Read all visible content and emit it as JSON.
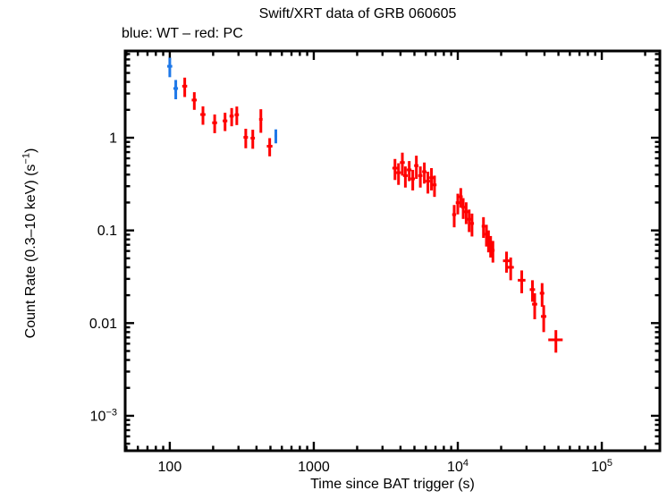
{
  "header": {
    "title": "Swift/XRT data of GRB 060605",
    "subtitle": "blue: WT – red: PC"
  },
  "axis_titles": {
    "x": "Time since BAT trigger (s)",
    "y_prefix": "Count Rate (0.3–10 keV) (s",
    "y_sup": "−1",
    "y_suffix": ")"
  },
  "chart_data": {
    "type": "scatter",
    "title": "Swift/XRT data of GRB 060605",
    "legend_text": "blue: WT – red: PC",
    "xlabel": "Time since BAT trigger (s)",
    "ylabel": "Count Rate (0.3–10 keV) (s^-1)",
    "xscale": "log",
    "yscale": "log",
    "grid": false,
    "xlim": [
      49,
      253000
    ],
    "ylim": [
      0.00042,
      8.63
    ],
    "x_major_ticks": [
      {
        "v": 100,
        "base": "100",
        "sup": ""
      },
      {
        "v": 1000,
        "base": "1000",
        "sup": ""
      },
      {
        "v": 10000,
        "base": "10",
        "sup": "4"
      },
      {
        "v": 100000,
        "base": "10",
        "sup": "5"
      }
    ],
    "y_major_ticks": [
      {
        "v": 1,
        "base": "1",
        "sup": ""
      },
      {
        "v": 0.1,
        "base": "0.1",
        "sup": ""
      },
      {
        "v": 0.01,
        "base": "0.01",
        "sup": ""
      },
      {
        "v": 0.001,
        "base": "10",
        "sup": "−3"
      }
    ],
    "series": [
      {
        "name": "WT",
        "color": "#1E78E8",
        "points": [
          [
            100,
            4,
            5.9,
            1.4
          ],
          [
            110,
            4,
            3.4,
            0.8
          ],
          [
            545,
            12,
            1.05,
            0.18
          ]
        ]
      },
      {
        "name": "PC",
        "color": "#FF0000",
        "points": [
          [
            127,
            5,
            3.6,
            0.85
          ],
          [
            148,
            6,
            2.55,
            0.55
          ],
          [
            170,
            7,
            1.78,
            0.4
          ],
          [
            205,
            8,
            1.45,
            0.33
          ],
          [
            242,
            9,
            1.52,
            0.34
          ],
          [
            269,
            9,
            1.71,
            0.38
          ],
          [
            292,
            10,
            1.77,
            0.4
          ],
          [
            337,
            12,
            1.01,
            0.24
          ],
          [
            377,
            13,
            0.99,
            0.23
          ],
          [
            429,
            12,
            1.58,
            0.45
          ],
          [
            494,
            22,
            0.81,
            0.18
          ],
          [
            3663,
            150,
            0.47,
            0.12
          ],
          [
            3876,
            150,
            0.42,
            0.11
          ],
          [
            4122,
            160,
            0.54,
            0.15
          ],
          [
            4325,
            160,
            0.39,
            0.1
          ],
          [
            4600,
            170,
            0.45,
            0.11
          ],
          [
            4867,
            170,
            0.36,
            0.09
          ],
          [
            5155,
            180,
            0.5,
            0.14
          ],
          [
            5495,
            190,
            0.39,
            0.1
          ],
          [
            5858,
            200,
            0.43,
            0.11
          ],
          [
            6201,
            210,
            0.34,
            0.09
          ],
          [
            6562,
            220,
            0.37,
            0.1
          ],
          [
            6890,
            230,
            0.31,
            0.08
          ],
          [
            9441,
            300,
            0.148,
            0.04
          ],
          [
            9998,
            320,
            0.199,
            0.05
          ],
          [
            10489,
            330,
            0.231,
            0.055
          ],
          [
            10902,
            340,
            0.178,
            0.045
          ],
          [
            11432,
            360,
            0.159,
            0.042
          ],
          [
            11991,
            380,
            0.132,
            0.036
          ],
          [
            12548,
            400,
            0.119,
            0.033
          ],
          [
            15077,
            420,
            0.111,
            0.028
          ],
          [
            15807,
            440,
            0.091,
            0.024
          ],
          [
            16338,
            450,
            0.079,
            0.021
          ],
          [
            16903,
            470,
            0.069,
            0.018
          ],
          [
            17532,
            480,
            0.061,
            0.016
          ],
          [
            21800,
            1200,
            0.047,
            0.012
          ],
          [
            23300,
            1200,
            0.04,
            0.011
          ],
          [
            27800,
            1700,
            0.029,
            0.008
          ],
          [
            33000,
            1400,
            0.023,
            0.006
          ],
          [
            34200,
            1400,
            0.016,
            0.005
          ],
          [
            38500,
            1400,
            0.021,
            0.006
          ],
          [
            39500,
            1700,
            0.0118,
            0.0038
          ],
          [
            48000,
            5500,
            0.0066,
            0.0018
          ]
        ]
      }
    ]
  }
}
